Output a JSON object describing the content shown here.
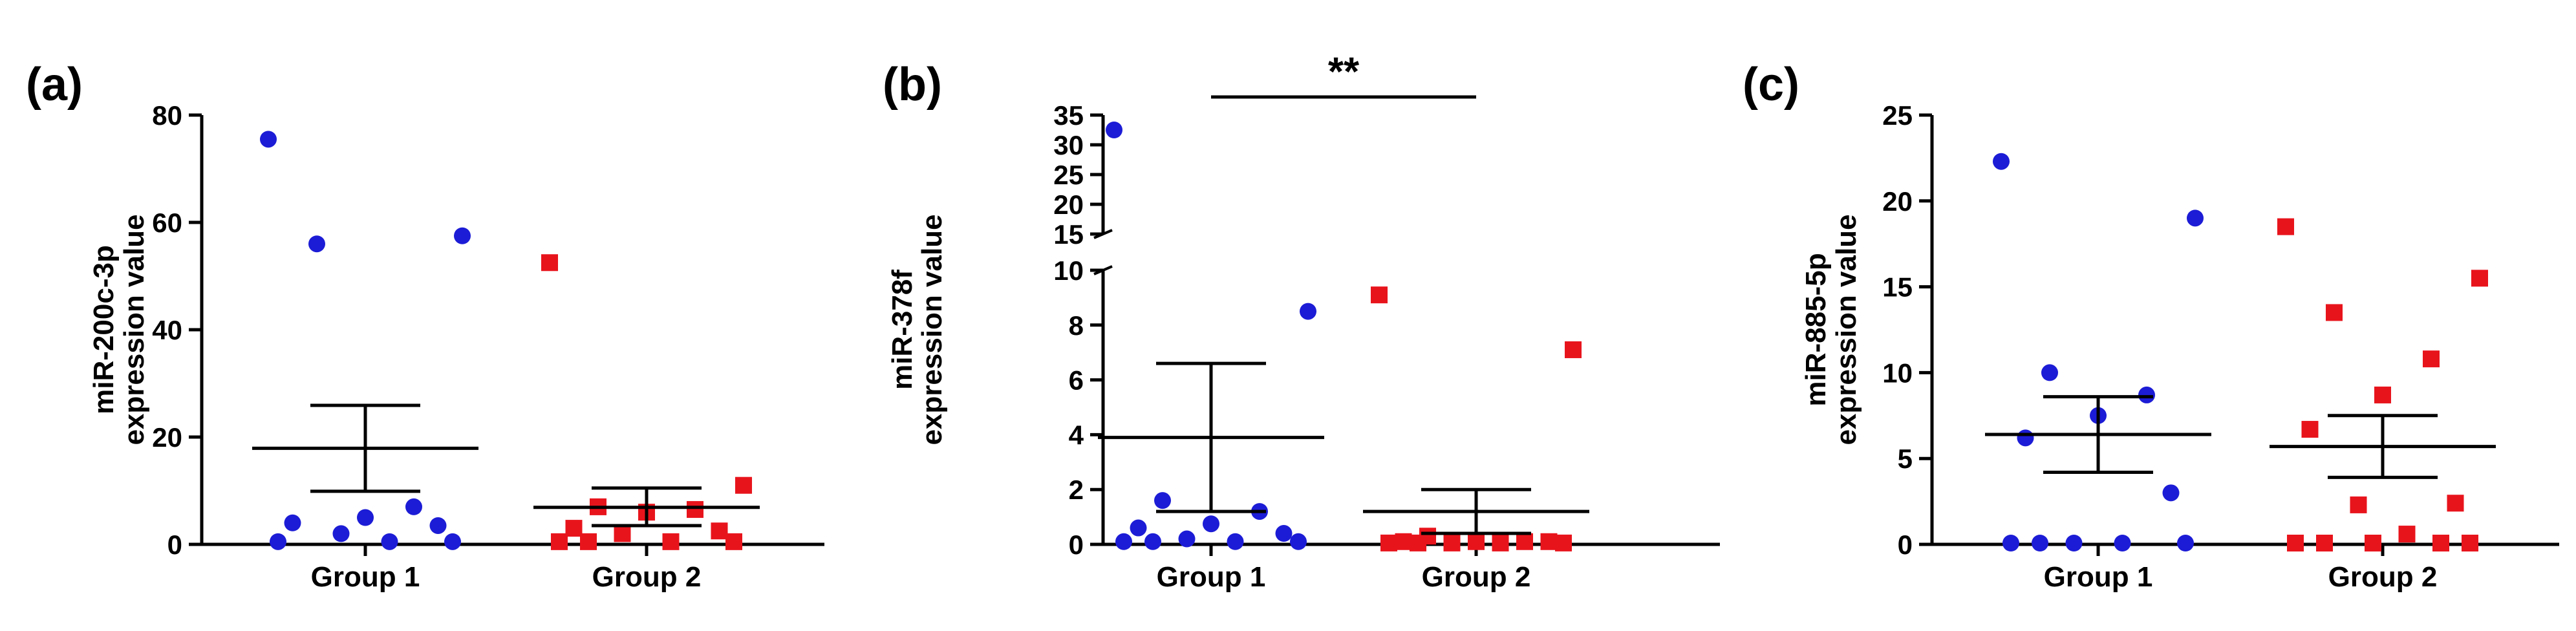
{
  "chart_data": [
    {
      "type": "scatter",
      "panel_label": "(a)",
      "ylabel_lines": [
        "miR-200c-3p",
        "expression value"
      ],
      "categories": [
        "Group 1",
        "Group 2"
      ],
      "ylim": [
        0,
        80
      ],
      "yticks": [
        0,
        20,
        40,
        60,
        80
      ],
      "series": [
        {
          "category": "Group 1",
          "marker": "circle",
          "color": "#1c1cd6",
          "values": [
            75.5,
            57.5,
            56,
            7,
            5,
            4,
            3.5,
            2,
            0.5,
            0.5,
            0.5
          ],
          "mean": 17.9,
          "sem": [
            9.9,
            25.9
          ]
        },
        {
          "category": "Group 2",
          "marker": "square",
          "color": "#e8141c",
          "values": [
            52.5,
            11,
            7,
            6.5,
            6,
            3,
            2.5,
            2,
            0.5,
            0.5,
            0.5,
            0.5
          ],
          "mean": 6.9,
          "sem": [
            3.5,
            10.5
          ]
        }
      ]
    },
    {
      "type": "scatter",
      "panel_label": "(b)",
      "ylabel_lines": [
        "miR-378f",
        "expression value"
      ],
      "categories": [
        "Group 1",
        "Group 2"
      ],
      "ylim": [
        0,
        35
      ],
      "axis_break": [
        10,
        15
      ],
      "yticks_lower": [
        0,
        2,
        4,
        6,
        8,
        10
      ],
      "yticks_upper": [
        15,
        20,
        25,
        30,
        35
      ],
      "significance": "**",
      "series": [
        {
          "category": "Group 1",
          "marker": "circle",
          "color": "#1c1cd6",
          "values": [
            32.5,
            8.5,
            1.6,
            1.2,
            0.75,
            0.6,
            0.4,
            0.2,
            0.1,
            0.1,
            0.1,
            0.1
          ],
          "mean": 3.9,
          "sem": [
            1.2,
            6.6
          ]
        },
        {
          "category": "Group 2",
          "marker": "square",
          "color": "#e8141c",
          "values": [
            9.1,
            7.1,
            0.3,
            0.1,
            0.1,
            0.1,
            0.1,
            0.05,
            0.05,
            0.05,
            0.05,
            0.05
          ],
          "mean": 1.2,
          "sem": [
            0.4,
            2.0
          ]
        }
      ]
    },
    {
      "type": "scatter",
      "panel_label": "(c)",
      "ylabel_lines": [
        "miR-885-5p",
        "expression value"
      ],
      "categories": [
        "Group 1",
        "Group 2"
      ],
      "ylim": [
        0,
        25
      ],
      "yticks": [
        0,
        5,
        10,
        15,
        20,
        25
      ],
      "series": [
        {
          "category": "Group 1",
          "marker": "circle",
          "color": "#1c1cd6",
          "values": [
            22.3,
            19,
            10,
            8.7,
            7.5,
            6.2,
            3,
            0,
            0,
            0,
            0,
            0
          ],
          "mean": 6.4,
          "sem": [
            4.2,
            8.6
          ]
        },
        {
          "category": "Group 2",
          "marker": "square",
          "color": "#e8141c",
          "values": [
            18.5,
            15.5,
            13.5,
            10.8,
            8.7,
            6.7,
            2.4,
            2.3,
            0.6,
            0,
            0,
            0,
            0,
            0
          ],
          "mean": 5.7,
          "sem": [
            3.9,
            7.5
          ]
        }
      ]
    }
  ]
}
